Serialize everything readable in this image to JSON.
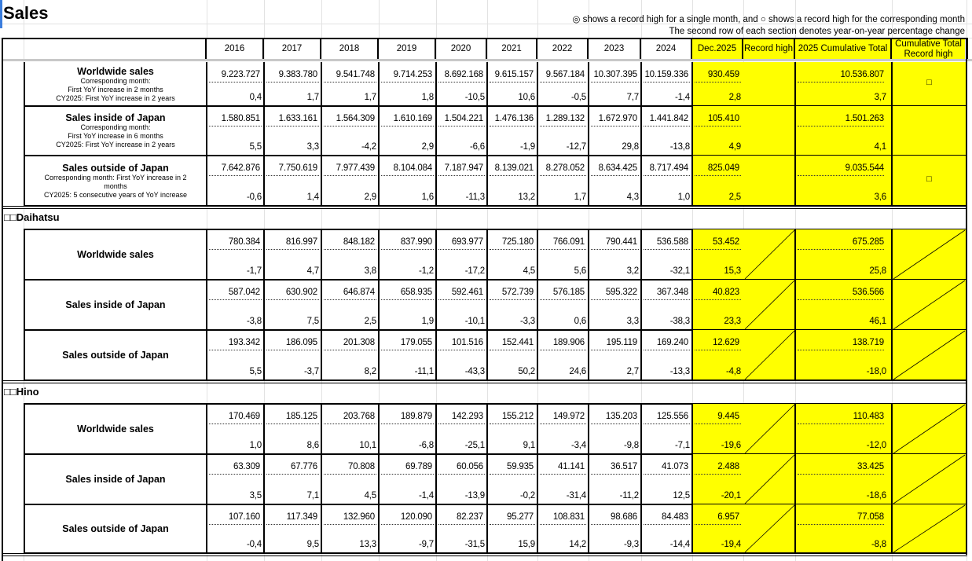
{
  "title": "Sales",
  "notes": [
    "◎ shows a record high for a single month, and ○ shows a record high for the corresponding month",
    "The second row of each section denotes year-on-year percentage change"
  ],
  "header": {
    "years": [
      "2016",
      "2017",
      "2018",
      "2019",
      "2020",
      "2021",
      "2022",
      "2023",
      "2024"
    ],
    "dec": "Dec.2025",
    "record_high": "Record high",
    "cumulative": "2025 Cumulative Total",
    "cumulative_record": "Cumulative Total Record high"
  },
  "colors": {
    "highlight": "#ffff00"
  },
  "sections": [
    {
      "name": "",
      "rows": [
        {
          "label": "Worldwide sales",
          "sub": [
            "Corresponding month:",
            "First YoY increase in 2 months",
            "CY2025:   First YoY increase in 2 years"
          ],
          "values": [
            "9.223.727",
            "9.383.780",
            "9.541.748",
            "9.714.253",
            "8.692.168",
            "9.615.157",
            "9.567.184",
            "10.307.395",
            "10.159.336"
          ],
          "yoy": [
            "0,4",
            "1,7",
            "1,7",
            "1,8",
            "-10,5",
            "10,6",
            "-0,5",
            "7,7",
            "-1,4"
          ],
          "dec": "930.459",
          "dec_yoy": "2,8",
          "record": "",
          "cum": "10.536.807",
          "cum_yoy": "3,7",
          "cum_record": "□",
          "slash": false
        },
        {
          "label": "Sales inside of Japan",
          "sub": [
            "Corresponding month:",
            "First YoY increase in 6 months",
            "CY2025:   First YoY increase in 2 years"
          ],
          "values": [
            "1.580.851",
            "1.633.161",
            "1.564.309",
            "1.610.169",
            "1.504.221",
            "1.476.136",
            "1.289.132",
            "1.672.970",
            "1.441.842"
          ],
          "yoy": [
            "5,5",
            "3,3",
            "-4,2",
            "2,9",
            "-6,6",
            "-1,9",
            "-12,7",
            "29,8",
            "-13,8"
          ],
          "dec": "105.410",
          "dec_yoy": "4,9",
          "record": "",
          "cum": "1.501.263",
          "cum_yoy": "4,1",
          "cum_record": "",
          "slash": false
        },
        {
          "label": "Sales outside of Japan",
          "sub": [
            "Corresponding month: First YoY increase in 2",
            "months",
            "CY2025: 5 consecutive years of YoY increase"
          ],
          "values": [
            "7.642.876",
            "7.750.619",
            "7.977.439",
            "8.104.084",
            "7.187.947",
            "8.139.021",
            "8.278.052",
            "8.634.425",
            "8.717.494"
          ],
          "yoy": [
            "-0,6",
            "1,4",
            "2,9",
            "1,6",
            "-11,3",
            "13,2",
            "1,7",
            "4,3",
            "1,0"
          ],
          "dec": "825.049",
          "dec_yoy": "2,5",
          "record": "",
          "cum": "9.035.544",
          "cum_yoy": "3,6",
          "cum_record": "□",
          "slash": false
        }
      ]
    },
    {
      "name": "□□Daihatsu",
      "rows": [
        {
          "label": "Worldwide sales",
          "sub": [],
          "values": [
            "780.384",
            "816.997",
            "848.182",
            "837.990",
            "693.977",
            "725.180",
            "766.091",
            "790.441",
            "536.588"
          ],
          "yoy": [
            "-1,7",
            "4,7",
            "3,8",
            "-1,2",
            "-17,2",
            "4,5",
            "5,6",
            "3,2",
            "-32,1"
          ],
          "dec": "53.452",
          "dec_yoy": "15,3",
          "record": "",
          "cum": "675.285",
          "cum_yoy": "25,8",
          "cum_record": "",
          "slash": true
        },
        {
          "label": "Sales inside of Japan",
          "sub": [],
          "values": [
            "587.042",
            "630.902",
            "646.874",
            "658.935",
            "592.461",
            "572.739",
            "576.185",
            "595.322",
            "367.348"
          ],
          "yoy": [
            "-3,8",
            "7,5",
            "2,5",
            "1,9",
            "-10,1",
            "-3,3",
            "0,6",
            "3,3",
            "-38,3"
          ],
          "dec": "40.823",
          "dec_yoy": "23,3",
          "record": "",
          "cum": "536.566",
          "cum_yoy": "46,1",
          "cum_record": "",
          "slash": true
        },
        {
          "label": "Sales outside of Japan",
          "sub": [],
          "values": [
            "193.342",
            "186.095",
            "201.308",
            "179.055",
            "101.516",
            "152.441",
            "189.906",
            "195.119",
            "169.240"
          ],
          "yoy": [
            "5,5",
            "-3,7",
            "8,2",
            "-11,1",
            "-43,3",
            "50,2",
            "24,6",
            "2,7",
            "-13,3"
          ],
          "dec": "12.629",
          "dec_yoy": "-4,8",
          "record": "",
          "cum": "138.719",
          "cum_yoy": "-18,0",
          "cum_record": "",
          "slash": true
        }
      ]
    },
    {
      "name": "□□Hino",
      "rows": [
        {
          "label": "Worldwide sales",
          "sub": [],
          "values": [
            "170.469",
            "185.125",
            "203.768",
            "189.879",
            "142.293",
            "155.212",
            "149.972",
            "135.203",
            "125.556"
          ],
          "yoy": [
            "1,0",
            "8,6",
            "10,1",
            "-6,8",
            "-25,1",
            "9,1",
            "-3,4",
            "-9,8",
            "-7,1"
          ],
          "dec": "9.445",
          "dec_yoy": "-19,6",
          "record": "",
          "cum": "110.483",
          "cum_yoy": "-12,0",
          "cum_record": "",
          "slash": true
        },
        {
          "label": "Sales inside of Japan",
          "sub": [],
          "values": [
            "63.309",
            "67.776",
            "70.808",
            "69.789",
            "60.056",
            "59.935",
            "41.141",
            "36.517",
            "41.073"
          ],
          "yoy": [
            "3,5",
            "7,1",
            "4,5",
            "-1,4",
            "-13,9",
            "-0,2",
            "-31,4",
            "-11,2",
            "12,5"
          ],
          "dec": "2.488",
          "dec_yoy": "-20,1",
          "record": "",
          "cum": "33.425",
          "cum_yoy": "-18,6",
          "cum_record": "",
          "slash": true
        },
        {
          "label": "Sales outside of Japan",
          "sub": [],
          "values": [
            "107.160",
            "117.349",
            "132.960",
            "120.090",
            "82.237",
            "95.277",
            "108.831",
            "98.686",
            "84.483"
          ],
          "yoy": [
            "-0,4",
            "9,5",
            "13,3",
            "-9,7",
            "-31,5",
            "15,9",
            "14,2",
            "-9,3",
            "-14,4"
          ],
          "dec": "6.957",
          "dec_yoy": "-19,4",
          "record": "",
          "cum": "77.058",
          "cum_yoy": "-8,8",
          "cum_record": "",
          "slash": true
        }
      ]
    }
  ]
}
